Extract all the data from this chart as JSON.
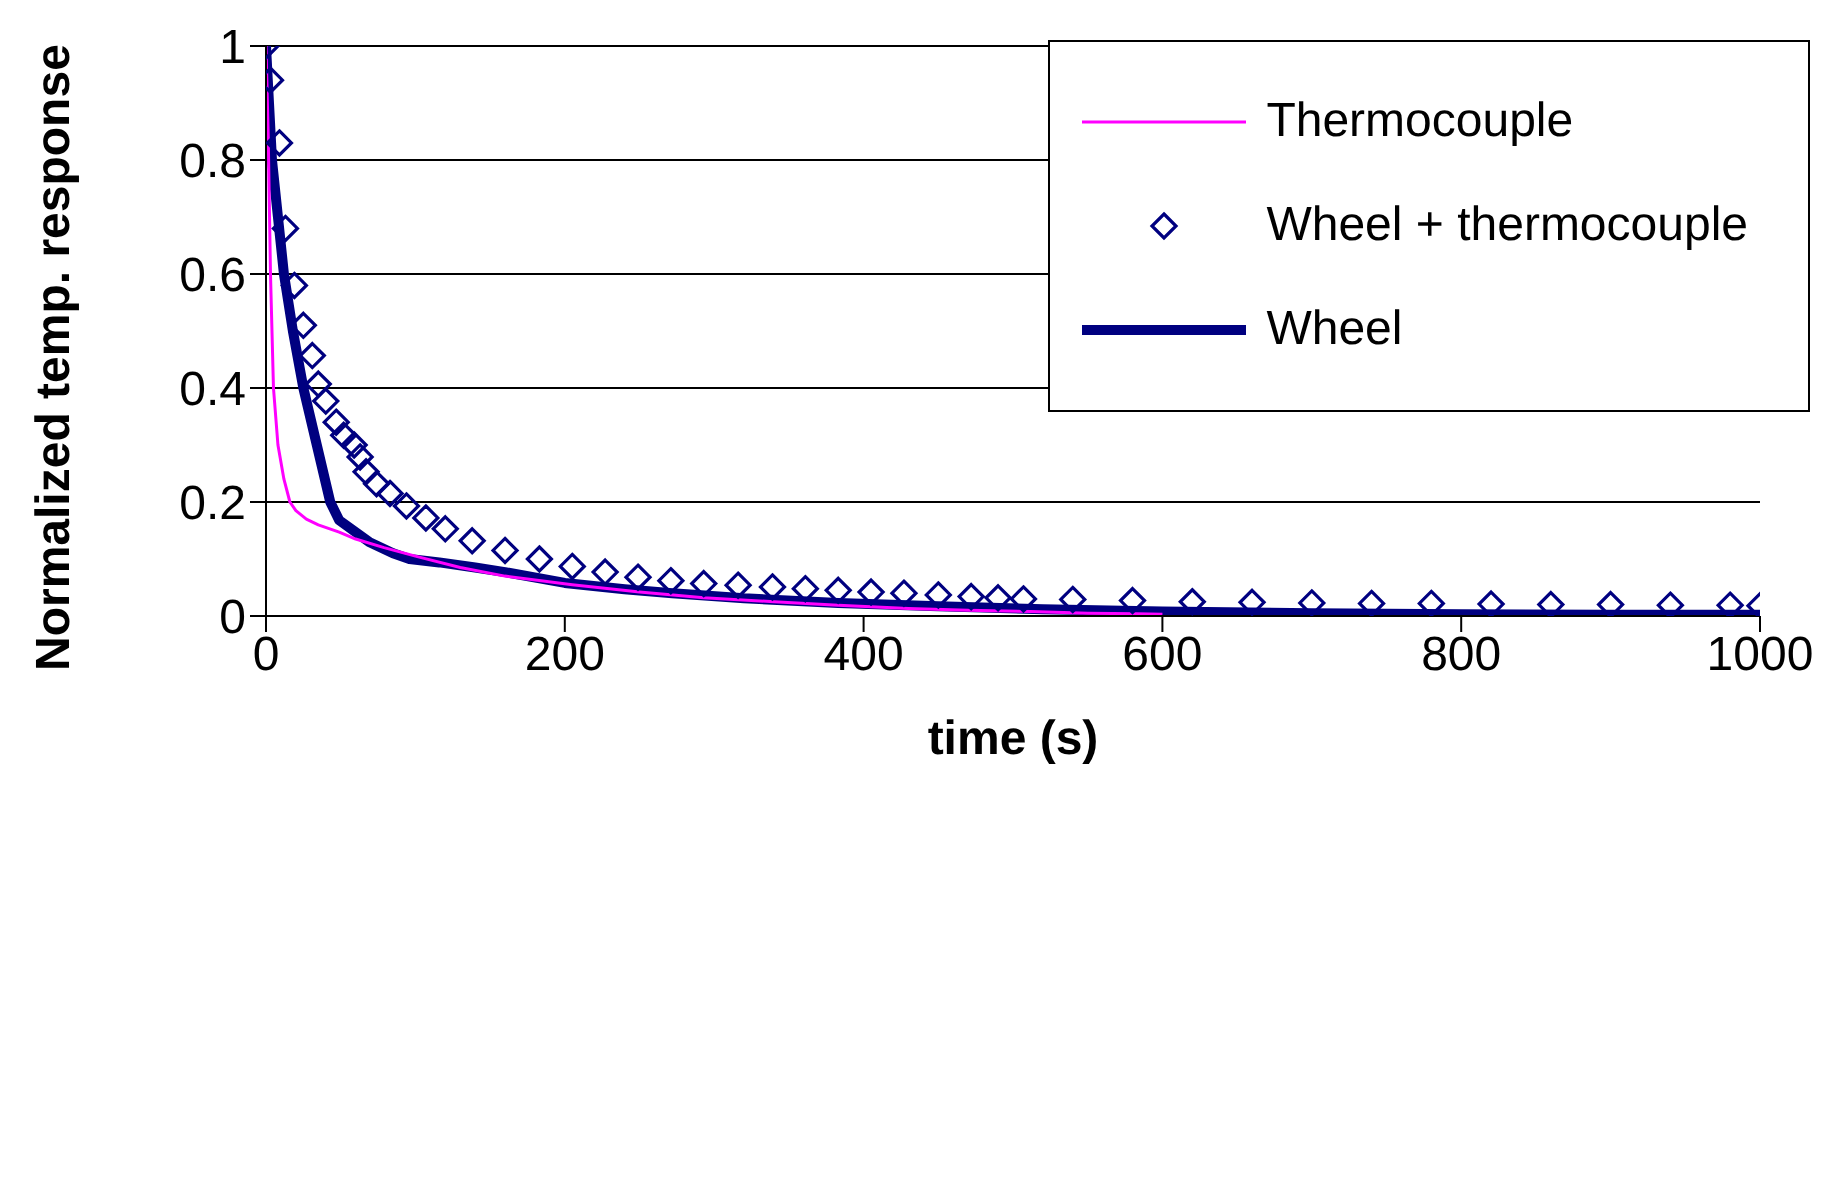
{
  "chart_data": {
    "type": "line",
    "xlabel": "time (s)",
    "ylabel": "Normalized temp. response",
    "xlim": [
      0,
      1000
    ],
    "xticks": [
      0,
      200,
      400,
      600,
      800,
      1000
    ],
    "ylim": [
      0,
      1
    ],
    "yticks": [
      0,
      {
        "value": 0.2,
        "label": "0.2"
      },
      {
        "value": 0.4,
        "label": "0.4"
      },
      {
        "value": 0.6,
        "label": "0.6"
      },
      {
        "value": 0.8,
        "label": "0.8"
      },
      1
    ],
    "grid": "y",
    "legend": "top right",
    "series": [
      {
        "name": "Thermocouple",
        "marker": "none",
        "color": "#ff00ff",
        "x": [
          0,
          1.5,
          3,
          5,
          8,
          12,
          16,
          20,
          27,
          35,
          49,
          60,
          79,
          100,
          130,
          160,
          205,
          250,
          293,
          340,
          383,
          430,
          470,
          512,
          550,
          583,
          600
        ],
        "values": [
          1,
          0.84,
          0.6,
          0.4,
          0.3,
          0.24,
          0.2,
          0.185,
          0.17,
          0.16,
          0.147,
          0.135,
          0.12,
          0.105,
          0.085,
          0.07,
          0.055,
          0.042,
          0.032,
          0.025,
          0.019,
          0.013,
          0.01,
          0.008,
          0.005,
          0.004,
          0.003
        ]
      },
      {
        "name": "Wheel + thermocouple",
        "type": "scatter",
        "marker": "diamond",
        "color": "#000080",
        "x": [
          0,
          3,
          9,
          13,
          19,
          25,
          31,
          35,
          40,
          47,
          52,
          59,
          63,
          67,
          74,
          83,
          94,
          107,
          120,
          138,
          160,
          183,
          205,
          227,
          249,
          271,
          293,
          316,
          339,
          361,
          383,
          405,
          427,
          450,
          472,
          490,
          507,
          540,
          580,
          620,
          660,
          700,
          740,
          780,
          820,
          860,
          900,
          940,
          980,
          1000
        ],
        "values": [
          1,
          0.94,
          0.83,
          0.68,
          0.58,
          0.51,
          0.457,
          0.407,
          0.377,
          0.34,
          0.317,
          0.3,
          0.279,
          0.253,
          0.232,
          0.215,
          0.193,
          0.172,
          0.153,
          0.132,
          0.115,
          0.1,
          0.087,
          0.077,
          0.068,
          0.062,
          0.057,
          0.054,
          0.051,
          0.048,
          0.045,
          0.042,
          0.04,
          0.037,
          0.034,
          0.032,
          0.03,
          0.029,
          0.027,
          0.025,
          0.024,
          0.023,
          0.022,
          0.022,
          0.021,
          0.02,
          0.02,
          0.019,
          0.019,
          0.018
        ]
      },
      {
        "name": "Wheel",
        "marker": "none",
        "color": "#000080",
        "x": [
          0,
          2,
          4,
          8,
          12,
          18,
          25,
          34,
          43,
          49,
          69,
          85,
          96,
          116,
          140,
          160,
          200,
          240,
          272,
          320,
          383,
          450,
          520,
          600,
          700,
          800,
          900,
          1000
        ],
        "values": [
          1,
          0.9,
          0.8,
          0.7,
          0.6,
          0.5,
          0.4,
          0.3,
          0.2,
          0.168,
          0.13,
          0.11,
          0.1,
          0.094,
          0.085,
          0.077,
          0.058,
          0.047,
          0.04,
          0.031,
          0.023,
          0.017,
          0.012,
          0.008,
          0.005,
          0.003,
          0.002,
          0.002
        ]
      }
    ]
  }
}
